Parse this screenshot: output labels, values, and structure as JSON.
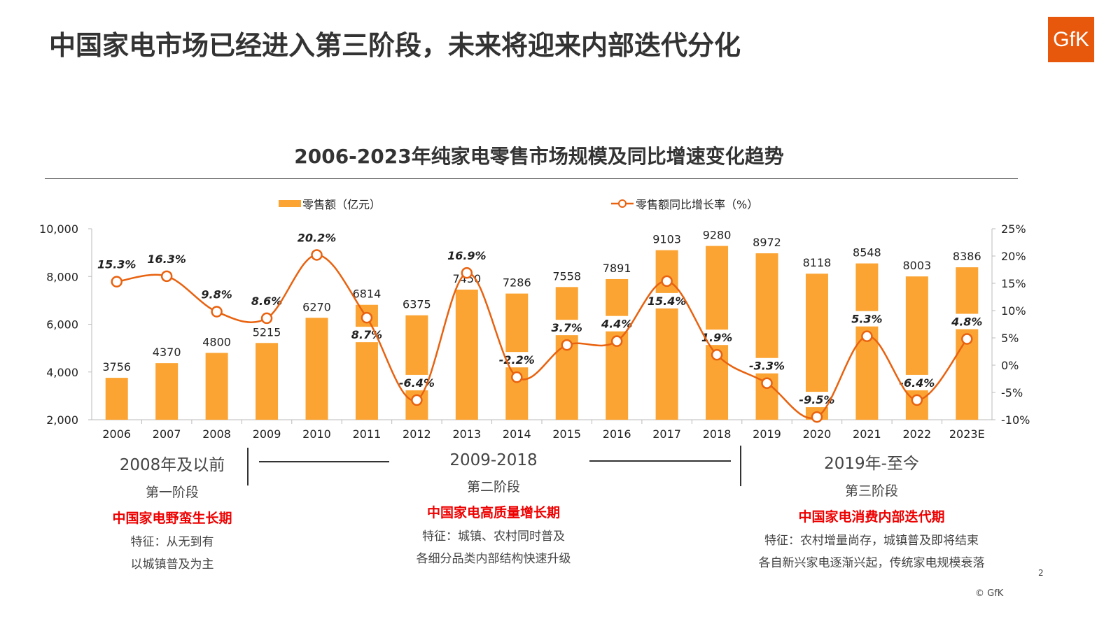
{
  "title": "中国家电市场已经进入第三阶段，未来将迎来内部迭代分化",
  "logo": "GfK",
  "page_number": "2",
  "copyright": "© GfK",
  "colors": {
    "bar": "#fba433",
    "line": "#e8620f",
    "accent": "#e00000"
  },
  "chart_data": {
    "type": "bar+line",
    "title": "2006-2023年纯家电零售市场规模及同比增速变化趋势",
    "categories": [
      "2006",
      "2007",
      "2008",
      "2009",
      "2010",
      "2011",
      "2012",
      "2013",
      "2014",
      "2015",
      "2016",
      "2017",
      "2018",
      "2019",
      "2020",
      "2021",
      "2022",
      "2023E"
    ],
    "series": [
      {
        "name": "零售额（亿元）",
        "type": "bar",
        "axis": "left",
        "values": [
          3756,
          4370,
          4800,
          5215,
          6270,
          6814,
          6375,
          7450,
          7286,
          7558,
          7891,
          9103,
          9280,
          8972,
          8118,
          8548,
          8003,
          8386
        ]
      },
      {
        "name": "零售额同比增长率（%）",
        "type": "line",
        "axis": "right",
        "values": [
          15.3,
          16.3,
          9.8,
          8.6,
          20.2,
          8.7,
          -6.4,
          16.9,
          -2.2,
          3.7,
          4.4,
          15.4,
          1.9,
          -3.3,
          -9.5,
          5.3,
          -6.4,
          4.8
        ]
      }
    ],
    "left_axis": {
      "range": [
        2000,
        10000
      ],
      "ticks": [
        "2,000",
        "4,000",
        "6,000",
        "8,000",
        "10,000"
      ]
    },
    "right_axis": {
      "range": [
        -10,
        25
      ],
      "ticks": [
        "-10%",
        "-5%",
        "0%",
        "5%",
        "10%",
        "15%",
        "20%",
        "25%"
      ]
    },
    "legend": "top",
    "grid": false
  },
  "phases": [
    {
      "range": "2008年及以前",
      "name": "第一阶段",
      "headline": "中国家电野蛮生长期",
      "desc": [
        "特征：从无到有",
        "以城镇普及为主"
      ]
    },
    {
      "range": "2009-2018",
      "name": "第二阶段",
      "headline": "中国家电高质量增长期",
      "desc": [
        "特征：城镇、农村同时普及",
        "各细分品类内部结构快速升级"
      ]
    },
    {
      "range": "2019年-至今",
      "name": "第三阶段",
      "headline": "中国家电消费内部迭代期",
      "desc": [
        "特征：农村增量尚存，城镇普及即将结束",
        "各自新兴家电逐渐兴起，传统家电规模衰落"
      ]
    }
  ]
}
